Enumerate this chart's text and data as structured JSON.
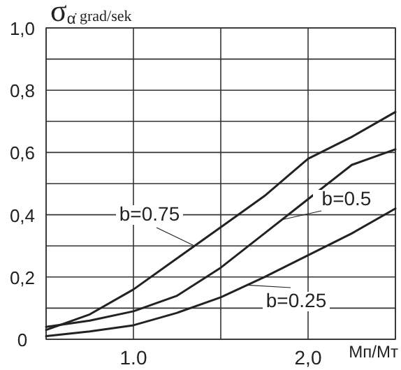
{
  "chart_data": {
    "type": "line",
    "ylabel": "σ$_{α̇}$ grad/sek",
    "xlabel": "Мп/Мт",
    "xlim": [
      0.5,
      2.5
    ],
    "ylim": [
      0,
      1
    ],
    "xticks": [
      {
        "value": 0.5,
        "label": null
      },
      {
        "value": 1,
        "label": "1.0"
      },
      {
        "value": 1.5,
        "label": null
      },
      {
        "value": 2,
        "label": "2,0"
      },
      {
        "value": 2.5,
        "label": null
      }
    ],
    "yticks": [
      {
        "value": 0,
        "label": "0"
      },
      {
        "value": 0.1,
        "label": null
      },
      {
        "value": 0.2,
        "label": "0,2"
      },
      {
        "value": 0.3,
        "label": null
      },
      {
        "value": 0.4,
        "label": "0,4"
      },
      {
        "value": 0.5,
        "label": null
      },
      {
        "value": 0.6,
        "label": "0,6"
      },
      {
        "value": 0.7,
        "label": null
      },
      {
        "value": 0.8,
        "label": "0,8"
      },
      {
        "value": 0.9,
        "label": null
      },
      {
        "value": 1,
        "label": "1,0"
      }
    ],
    "grid": true,
    "line_style": "solid",
    "x": [
      0.5,
      0.75,
      1.0,
      1.25,
      1.5,
      1.75,
      2.0,
      2.25,
      2.5
    ],
    "series": [
      {
        "name": "b=0.75",
        "color": "#222222",
        "values": [
          0.03,
          0.08,
          0.16,
          0.26,
          0.36,
          0.46,
          0.58,
          0.65,
          0.73
        ]
      },
      {
        "name": "b=0.5",
        "color": "#222222",
        "values": [
          0.04,
          0.06,
          0.09,
          0.14,
          0.23,
          0.34,
          0.45,
          0.56,
          0.61
        ]
      },
      {
        "name": "b=0.25",
        "color": "#222222",
        "values": [
          0.01,
          0.025,
          0.045,
          0.085,
          0.135,
          0.2,
          0.27,
          0.34,
          0.42
        ]
      }
    ]
  }
}
